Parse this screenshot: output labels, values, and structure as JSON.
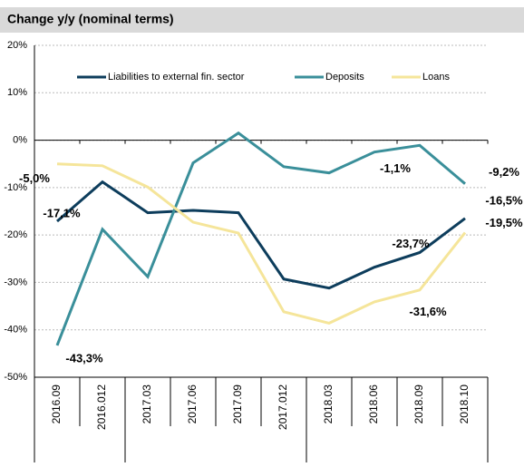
{
  "chart_data": {
    "type": "line",
    "title": "Change y/y (nominal terms)",
    "categories": [
      "2016.09",
      "2016.012",
      "2017.03",
      "2017.06",
      "2017.09",
      "2017.012",
      "2018.03",
      "2018.06",
      "2018.09",
      "2018.10"
    ],
    "series": [
      {
        "name": "Liabilities to external fin. sector",
        "color": "#0d3d5c",
        "values": [
          -17.1,
          -8.8,
          -15.3,
          -14.8,
          -15.3,
          -29.3,
          -31.2,
          -26.8,
          -23.7,
          -16.5
        ],
        "value_labels": [
          "-17,1%",
          null,
          null,
          null,
          null,
          null,
          null,
          null,
          "-23,7%",
          "-16,5%"
        ]
      },
      {
        "name": "Deposits",
        "color": "#3a8f9a",
        "values": [
          -43.3,
          -18.8,
          -28.8,
          -4.8,
          1.5,
          -5.6,
          -6.9,
          -2.5,
          -1.1,
          -9.2
        ],
        "value_labels": [
          "-43,3%",
          null,
          null,
          null,
          null,
          null,
          null,
          null,
          "-1,1%",
          "-9,2%"
        ]
      },
      {
        "name": "Loans",
        "color": "#f5e59a",
        "values": [
          -5.0,
          -5.4,
          -9.9,
          -17.3,
          -19.6,
          -36.2,
          -38.6,
          -34.1,
          -31.6,
          -19.5
        ],
        "value_labels": [
          "-5,0%",
          null,
          null,
          null,
          null,
          null,
          null,
          null,
          "-31,6%",
          "-19,5%"
        ]
      }
    ],
    "ylim": [
      -50,
      20
    ],
    "yticks": [
      {
        "value": -50,
        "label": "-50%"
      },
      {
        "value": -40,
        "label": "-40%"
      },
      {
        "value": -30,
        "label": "-30%"
      },
      {
        "value": -20,
        "label": "-20%"
      },
      {
        "value": -10,
        "label": "-10%"
      },
      {
        "value": 0,
        "label": "0%"
      },
      {
        "value": 10,
        "label": "10%"
      },
      {
        "value": 20,
        "label": "20%"
      }
    ],
    "grid": true,
    "legend": "top"
  }
}
